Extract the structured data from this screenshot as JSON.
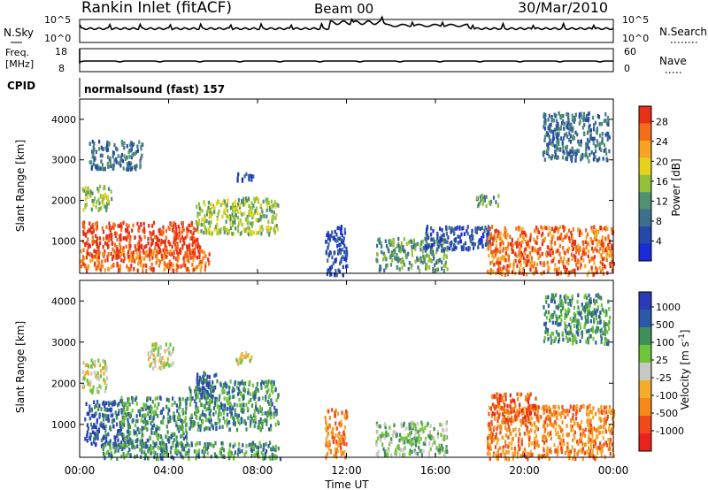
{
  "header": {
    "station": "Rankin Inlet (fitACF)",
    "beam": "Beam 00",
    "date": "30/Mar/2010"
  },
  "strip": {
    "nsky_label": "N.Sky",
    "nsearch_label": "N.Search",
    "nsky_ticks": [
      "10^5",
      "10^0"
    ],
    "nsearch_ticks": [
      "10^5",
      "10^0"
    ],
    "freq_label_1": "Freq.",
    "freq_label_2": "[MHz]",
    "freq_ticks": [
      "18",
      "8"
    ],
    "nave_label": "Nave",
    "nave_ticks": [
      "60",
      "0"
    ],
    "cpid_label": "CPID",
    "cpid_value": "normalsound (fast) 157"
  },
  "colors": {
    "power": [
      "#1b2bd8",
      "#2449a8",
      "#3d6e8c",
      "#4f9170",
      "#93c23a",
      "#e7d21e",
      "#f7a424",
      "#f36d1a",
      "#e73018"
    ],
    "velocity": [
      "#e8231c",
      "#f04a1c",
      "#f58a1a",
      "#f5ab2b",
      "#c9c9c4",
      "#6fc43a",
      "#3f8f5a",
      "#2c58a8",
      "#2a3bb5"
    ]
  },
  "chart_data": [
    {
      "type": "heatmap",
      "name": "power",
      "xlabel": "",
      "ylabel": "Slant Range [km]",
      "xlim": [
        "00:00",
        "24:00"
      ],
      "ylim": [
        200,
        4500
      ],
      "yticks": [
        "1000",
        "2000",
        "3000",
        "4000"
      ],
      "xticks": [
        "00:00",
        "04:00",
        "08:00",
        "12:00",
        "16:00",
        "20:00",
        "00:00"
      ],
      "colorbar_label": "Power [dB]",
      "colorbar_ticks": [
        "4",
        "8",
        "12",
        "16",
        "20",
        "24",
        "28"
      ],
      "regions": [
        {
          "t": [
            0.1,
            5.4
          ],
          "r": [
            600,
            1500
          ],
          "level": 8
        },
        {
          "t": [
            0.0,
            5.8
          ],
          "r": [
            300,
            800
          ],
          "level": 7
        },
        {
          "t": [
            0.1,
            1.4
          ],
          "r": [
            1800,
            2400
          ],
          "level": 4
        },
        {
          "t": [
            0.4,
            2.8
          ],
          "r": [
            2800,
            3500
          ],
          "level": 2
        },
        {
          "t": [
            5.2,
            8.9
          ],
          "r": [
            1200,
            2100
          ],
          "level": 4
        },
        {
          "t": [
            7.0,
            7.8
          ],
          "r": [
            2500,
            2700
          ],
          "level": 1
        },
        {
          "t": [
            11.0,
            12.0
          ],
          "r": [
            200,
            1400
          ],
          "level": 1
        },
        {
          "t": [
            13.3,
            16.5
          ],
          "r": [
            300,
            1100
          ],
          "level": 3
        },
        {
          "t": [
            15.5,
            18.5
          ],
          "r": [
            800,
            1400
          ],
          "level": 1
        },
        {
          "t": [
            17.8,
            18.8
          ],
          "r": [
            1900,
            2200
          ],
          "level": 3
        },
        {
          "t": [
            18.3,
            24.0
          ],
          "r": [
            200,
            1400
          ],
          "level": 7
        },
        {
          "t": [
            20.8,
            23.8
          ],
          "r": [
            3000,
            4200
          ],
          "level": 2
        }
      ]
    },
    {
      "type": "heatmap",
      "name": "velocity",
      "xlabel": "Time UT",
      "ylabel": "Slant Range [km]",
      "xlim": [
        "00:00",
        "24:00"
      ],
      "ylim": [
        200,
        4500
      ],
      "yticks": [
        "1000",
        "2000",
        "3000",
        "4000"
      ],
      "xticks": [
        "00:00",
        "04:00",
        "08:00",
        "12:00",
        "16:00",
        "20:00",
        "00:00"
      ],
      "colorbar_label": "Velocity [m s^-1]",
      "colorbar_ticks": [
        "1000",
        "500",
        "100",
        "25",
        "-25",
        "-100",
        "-500",
        "-1000"
      ],
      "regions": [
        {
          "t": [
            0.2,
            2.2
          ],
          "r": [
            500,
            1600
          ],
          "level": 7
        },
        {
          "t": [
            1.8,
            4.8
          ],
          "r": [
            500,
            1700
          ],
          "level": 6
        },
        {
          "t": [
            4.9,
            8.9
          ],
          "r": [
            900,
            2100
          ],
          "level": 6
        },
        {
          "t": [
            5.2,
            6.2
          ],
          "r": [
            1700,
            2300
          ],
          "level": 7
        },
        {
          "t": [
            0.1,
            1.2
          ],
          "r": [
            1800,
            2600
          ],
          "level": 4
        },
        {
          "t": [
            3.0,
            4.2
          ],
          "r": [
            2400,
            3000
          ],
          "level": 4
        },
        {
          "t": [
            7.0,
            7.8
          ],
          "r": [
            2500,
            2800
          ],
          "level": 4
        },
        {
          "t": [
            1.0,
            9.0
          ],
          "r": [
            200,
            600
          ],
          "level": 6
        },
        {
          "t": [
            11.0,
            12.0
          ],
          "r": [
            200,
            1400
          ],
          "level": 2
        },
        {
          "t": [
            13.3,
            16.5
          ],
          "r": [
            300,
            1100
          ],
          "level": 5
        },
        {
          "t": [
            18.3,
            24.0
          ],
          "r": [
            200,
            1500
          ],
          "level": 2
        },
        {
          "t": [
            18.5,
            20.5
          ],
          "r": [
            1100,
            1800
          ],
          "level": 1
        },
        {
          "t": [
            20.8,
            23.8
          ],
          "r": [
            3000,
            4200
          ],
          "level": 6
        }
      ]
    }
  ]
}
